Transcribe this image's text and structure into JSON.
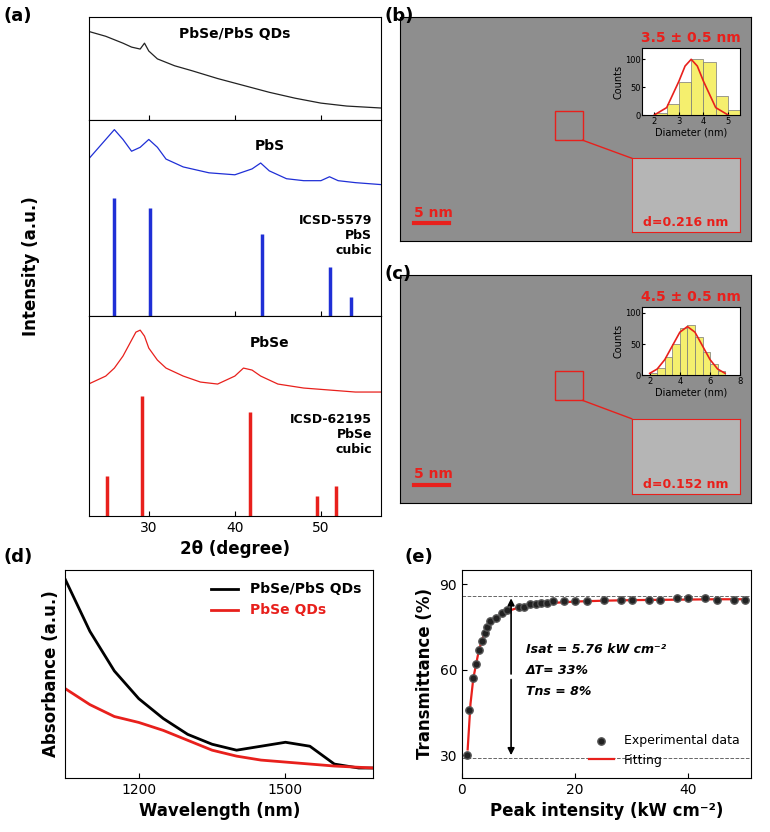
{
  "chart_data": [
    {
      "panel": "(a)",
      "type": "stacked_panels",
      "xlabel": "2θ (degree)",
      "ylabel": "Intensity (a.u.)",
      "xlim": [
        23,
        57
      ],
      "xticks": [
        30,
        40,
        50
      ],
      "tick_labels": "x",
      "subplots": [
        {
          "label": "PbSe/PbS QDs",
          "ylim": [
            0,
            1.05
          ],
          "series": [
            {
              "name": "PbSe/PbS QDs",
              "type": "line",
              "color": "#222222",
              "x": [
                23,
                25,
                27,
                28,
                29,
                29.5,
                30,
                31,
                33,
                35,
                38,
                41,
                44,
                47,
                50,
                53,
                57
              ],
              "values": [
                0.9,
                0.85,
                0.78,
                0.74,
                0.72,
                0.78,
                0.7,
                0.62,
                0.55,
                0.5,
                0.42,
                0.35,
                0.28,
                0.22,
                0.17,
                0.14,
                0.12
              ]
            }
          ]
        },
        {
          "label": "PbS",
          "ylim": [
            0,
            1.0
          ],
          "series": [
            {
              "name": "PbS",
              "type": "line",
              "color": "#1f2fd6",
              "x": [
                23,
                24,
                25,
                26,
                27,
                28,
                29,
                30,
                31,
                32,
                34,
                37,
                40,
                42,
                43,
                44,
                46,
                48,
                50,
                51,
                52,
                54,
                57
              ],
              "values": [
                0.8,
                0.85,
                0.9,
                0.95,
                0.9,
                0.84,
                0.86,
                0.9,
                0.86,
                0.8,
                0.76,
                0.73,
                0.72,
                0.75,
                0.78,
                0.74,
                0.7,
                0.69,
                0.69,
                0.71,
                0.69,
                0.68,
                0.67
              ]
            },
            {
              "name": "ICSD-5579\nPbS\ncubic",
              "type": "stem",
              "color": "#1f2fd6",
              "x": [
                26.0,
                30.1,
                43.1,
                51.0,
                53.5
              ],
              "values": [
                0.6,
                0.55,
                0.42,
                0.25,
                0.1
              ]
            }
          ]
        },
        {
          "label": "PbSe",
          "ylim": [
            0,
            1.0
          ],
          "series": [
            {
              "name": "PbSe",
              "type": "line",
              "color": "#e8201c",
              "x": [
                23,
                25,
                26,
                27,
                28,
                28.5,
                29,
                29.5,
                30,
                31,
                32,
                34,
                36,
                38,
                40,
                41,
                42,
                43,
                45,
                48,
                51,
                54,
                57
              ],
              "values": [
                0.66,
                0.7,
                0.74,
                0.8,
                0.88,
                0.92,
                0.93,
                0.9,
                0.84,
                0.78,
                0.74,
                0.7,
                0.67,
                0.66,
                0.7,
                0.74,
                0.73,
                0.7,
                0.66,
                0.64,
                0.63,
                0.62,
                0.62
              ]
            },
            {
              "name": "ICSD-62195\nPbSe\ncubic",
              "type": "stem",
              "color": "#e8201c",
              "x": [
                25.2,
                29.2,
                41.8,
                49.5,
                51.8
              ],
              "values": [
                0.2,
                0.6,
                0.52,
                0.1,
                0.15
              ]
            }
          ]
        }
      ]
    },
    {
      "panel": "(b)",
      "type": "image",
      "scale_bar": "5 nm",
      "size_text": "3.5 ± 0.5 nm",
      "spacing_text": "d=0.216 nm",
      "inset": {
        "type": "histogram",
        "xlabel": "Diameter (nm)",
        "ylabel": "Counts",
        "color": "#f5ef6e",
        "bins": [
          2.0,
          2.5,
          3.0,
          3.5,
          4.0,
          4.5,
          5.0,
          5.5
        ],
        "counts": [
          5,
          20,
          60,
          100,
          95,
          35,
          10
        ],
        "xlim": [
          1.5,
          5.5
        ],
        "xticks": [
          2,
          3,
          4,
          5
        ],
        "ylim": [
          0,
          120
        ],
        "yticks": [
          0,
          50,
          100
        ],
        "fit": {
          "color": "#e8201c",
          "x": [
            2,
            2.5,
            3,
            3.25,
            3.5,
            3.75,
            4,
            4.5,
            5
          ],
          "values": [
            1,
            14,
            61,
            88,
            100,
            88,
            61,
            14,
            1
          ]
        }
      }
    },
    {
      "panel": "(c)",
      "type": "image",
      "scale_bar": "5 nm",
      "size_text": "4.5 ± 0.5 nm",
      "spacing_text": "d=0.152 nm",
      "inset": {
        "type": "histogram",
        "xlabel": "Diameter (nm)",
        "ylabel": "Counts",
        "color": "#f5ef6e",
        "bins": [
          2.0,
          2.5,
          3.0,
          3.5,
          4.0,
          4.5,
          5.0,
          5.5,
          6.0,
          6.5,
          7.0
        ],
        "counts": [
          3,
          12,
          30,
          50,
          75,
          80,
          62,
          38,
          18,
          6
        ],
        "xlim": [
          1.5,
          8
        ],
        "xticks": [
          2,
          4,
          6,
          8
        ],
        "ylim": [
          0,
          110
        ],
        "yticks": [
          0,
          50,
          100
        ],
        "fit": {
          "color": "#e8201c",
          "x": [
            2,
            2.5,
            3,
            3.5,
            4,
            4.5,
            5,
            5.5,
            6,
            6.5,
            7
          ],
          "values": [
            3,
            10,
            25,
            47,
            69,
            78,
            69,
            47,
            25,
            10,
            3
          ]
        }
      }
    },
    {
      "panel": "(d)",
      "type": "line",
      "xlabel": "Wavelength (nm)",
      "ylabel": "Absorbance (a.u.)",
      "xlim": [
        1050,
        1680
      ],
      "xticks": [
        1200,
        1500
      ],
      "ylim": [
        0,
        1.05
      ],
      "tick_labels": "x",
      "legend": "upper right",
      "series": [
        {
          "name": "PbSe/PbS QDs",
          "color": "#000000",
          "x": [
            1050,
            1100,
            1150,
            1200,
            1250,
            1300,
            1350,
            1400,
            1450,
            1500,
            1550,
            1600,
            1650,
            1680
          ],
          "values": [
            1.0,
            0.74,
            0.54,
            0.4,
            0.3,
            0.22,
            0.17,
            0.14,
            0.16,
            0.18,
            0.16,
            0.07,
            0.05,
            0.05
          ]
        },
        {
          "name": "PbSe QDs",
          "color": "#e8201c",
          "x": [
            1050,
            1100,
            1150,
            1200,
            1250,
            1300,
            1350,
            1400,
            1450,
            1500,
            1550,
            1600,
            1680
          ],
          "values": [
            0.45,
            0.37,
            0.31,
            0.28,
            0.24,
            0.19,
            0.14,
            0.11,
            0.09,
            0.08,
            0.07,
            0.06,
            0.05
          ]
        }
      ]
    },
    {
      "panel": "(e)",
      "type": "scatter",
      "xlabel": "Peak intensity (kW cm⁻²)",
      "ylabel": "Transmittance (%)",
      "xlim": [
        0,
        51
      ],
      "xticks": [
        0,
        20,
        40
      ],
      "ylim": [
        22,
        95
      ],
      "yticks": [
        30,
        60,
        90
      ],
      "legend": "lower right",
      "hlines": [
        86,
        29
      ],
      "annotations": [
        "Isat = 5.76 kW cm⁻²",
        "ΔT= 33%",
        "Tns = 8%"
      ],
      "series": [
        {
          "name": "Experimental data",
          "type": "scatter",
          "marker": "o",
          "color": "#222222",
          "x": [
            0.9,
            1.3,
            2,
            2.5,
            3,
            3.5,
            4,
            4.5,
            5,
            6,
            7,
            8,
            10,
            11,
            12,
            13,
            14,
            15,
            16,
            18,
            20,
            22,
            25,
            28,
            30,
            33,
            35,
            38,
            40,
            43,
            45,
            48,
            50
          ],
          "values": [
            30,
            46,
            57,
            62,
            67,
            70,
            73,
            75,
            77,
            78,
            80,
            81,
            82,
            82,
            83,
            83,
            83.5,
            83.5,
            84,
            84,
            84,
            84,
            84.5,
            84.5,
            84.5,
            84.5,
            84.5,
            85,
            85,
            85,
            84.5,
            84.5,
            84.5
          ]
        },
        {
          "name": "Fitting",
          "type": "line",
          "color": "#e8201c",
          "x": [
            1,
            1.5,
            2,
            3,
            4,
            5,
            6,
            8,
            10,
            12,
            15,
            20,
            25,
            30,
            35,
            40,
            45,
            50
          ],
          "values": [
            32,
            48,
            57,
            67,
            73,
            76,
            78,
            80.5,
            81.8,
            82.6,
            83.3,
            83.9,
            84.2,
            84.4,
            84.5,
            84.6,
            84.7,
            84.7
          ]
        }
      ]
    }
  ]
}
